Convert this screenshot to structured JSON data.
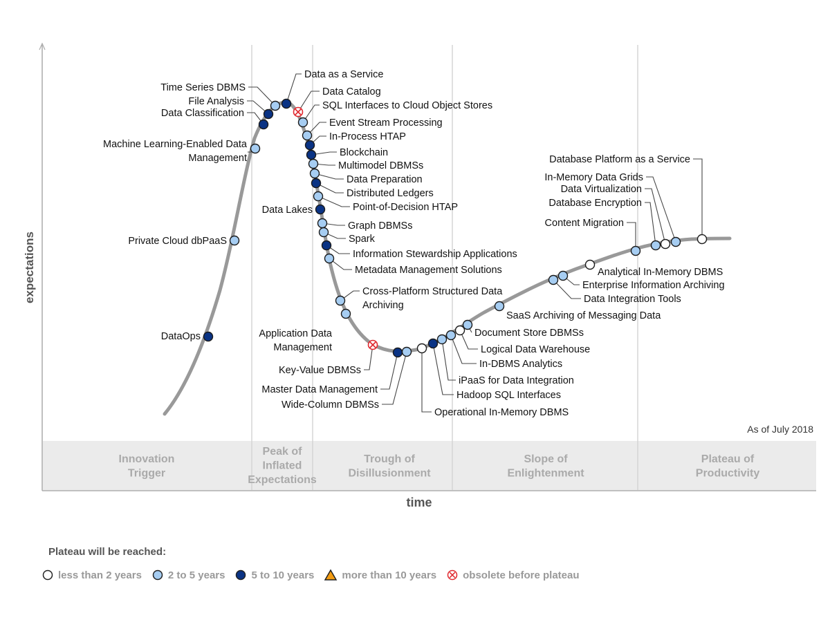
{
  "chart_data": {
    "type": "hype-cycle",
    "ylabel": "expectations",
    "xlabel": "time",
    "as_of": "As of July 2018",
    "phases": [
      {
        "lines": [
          "Innovation",
          "Trigger"
        ]
      },
      {
        "lines": [
          "Peak of",
          "Inflated",
          "Expectations"
        ]
      },
      {
        "lines": [
          "Trough of",
          "Disillusionment"
        ]
      },
      {
        "lines": [
          "Slope of",
          "Enlightenment"
        ]
      },
      {
        "lines": [
          "Plateau of",
          "Productivity"
        ]
      }
    ],
    "categories": {
      "lt2": {
        "label": "less than 2 years",
        "color": "#ffffff"
      },
      "2to5": {
        "label": "2 to 5 years",
        "color": "#a6cdf2"
      },
      "5to10": {
        "label": "5 to 10 years",
        "color": "#0a3384"
      },
      "gt10": {
        "label": "more than 10 years",
        "color": "#f39c12"
      },
      "obsolete": {
        "label": "obsolete before plateau",
        "color": "#e0282e"
      }
    },
    "legend_title": "Plateau will be reached:",
    "technologies": [
      {
        "name": "DataOps",
        "cat": "5to10"
      },
      {
        "name": "Private Cloud dbPaaS",
        "cat": "2to5"
      },
      {
        "name": "Machine Learning-Enabled Data Management",
        "cat": "2to5"
      },
      {
        "name": "Data Classification",
        "cat": "5to10"
      },
      {
        "name": "File Analysis",
        "cat": "5to10"
      },
      {
        "name": "Time Series DBMS",
        "cat": "2to5"
      },
      {
        "name": "Data as a Service",
        "cat": "5to10"
      },
      {
        "name": "Data Catalog",
        "cat": "obsolete"
      },
      {
        "name": "SQL Interfaces to Cloud Object Stores",
        "cat": "2to5"
      },
      {
        "name": "Event Stream Processing",
        "cat": "2to5"
      },
      {
        "name": "In-Process HTAP",
        "cat": "5to10"
      },
      {
        "name": "Blockchain",
        "cat": "5to10"
      },
      {
        "name": "Multimodel DBMSs",
        "cat": "2to5"
      },
      {
        "name": "Data Preparation",
        "cat": "2to5"
      },
      {
        "name": "Distributed Ledgers",
        "cat": "5to10"
      },
      {
        "name": "Point-of-Decision HTAP",
        "cat": "2to5"
      },
      {
        "name": "Data Lakes",
        "cat": "5to10"
      },
      {
        "name": "Graph DBMSs",
        "cat": "2to5"
      },
      {
        "name": "Spark",
        "cat": "2to5"
      },
      {
        "name": "Information Stewardship Applications",
        "cat": "5to10"
      },
      {
        "name": "Metadata Management Solutions",
        "cat": "2to5"
      },
      {
        "name": "Cross-Platform Structured Data Archiving",
        "cat": "2to5"
      },
      {
        "name": "Application Data Management",
        "cat": "2to5"
      },
      {
        "name": "Key-Value DBMSs",
        "cat": "obsolete"
      },
      {
        "name": "Master Data Management",
        "cat": "5to10"
      },
      {
        "name": "Wide-Column DBMSs",
        "cat": "2to5"
      },
      {
        "name": "Operational In-Memory DBMS",
        "cat": "lt2"
      },
      {
        "name": "Hadoop SQL Interfaces",
        "cat": "5to10"
      },
      {
        "name": "iPaaS for Data Integration",
        "cat": "2to5"
      },
      {
        "name": "In-DBMS Analytics",
        "cat": "2to5"
      },
      {
        "name": "Logical Data Warehouse",
        "cat": "lt2"
      },
      {
        "name": "Document Store DBMSs",
        "cat": "2to5"
      },
      {
        "name": "SaaS Archiving of Messaging Data",
        "cat": "2to5"
      },
      {
        "name": "Data Integration Tools",
        "cat": "2to5"
      },
      {
        "name": "Enterprise Information Archiving",
        "cat": "2to5"
      },
      {
        "name": "Analytical In-Memory DBMS",
        "cat": "lt2"
      },
      {
        "name": "Content Migration",
        "cat": "2to5"
      },
      {
        "name": "Database Encryption",
        "cat": "2to5"
      },
      {
        "name": "Data Virtualization",
        "cat": "lt2"
      },
      {
        "name": "In-Memory Data Grids",
        "cat": "2to5"
      },
      {
        "name": "Database Platform as a Service",
        "cat": "lt2"
      }
    ]
  }
}
